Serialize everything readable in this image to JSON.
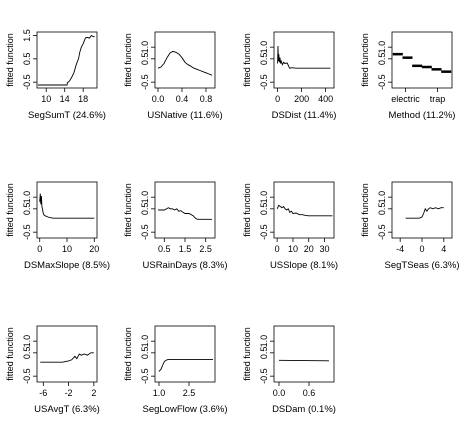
{
  "chart_data": [
    {
      "type": "line",
      "ylabel": "fitted function",
      "xlabel": "SegSumT  (24.6%)",
      "xlim": [
        8,
        21
      ],
      "ylim": [
        -0.75,
        1.65
      ],
      "xticks": [
        {
          "v": 10,
          "label": "10"
        },
        {
          "v": 14,
          "label": "14"
        },
        {
          "v": 18,
          "label": "18"
        }
      ],
      "yticks": [
        {
          "v": -0.5,
          "label": "-0.5"
        },
        {
          "v": 0.5,
          "label": "0.5"
        },
        {
          "v": 1.5,
          "label": "1.5"
        }
      ],
      "series": [
        {
          "x": [
            8.2,
            14.5,
            14.6,
            15,
            15.5,
            16,
            16.5,
            17,
            17.3,
            17.6,
            18,
            18.2,
            18.5,
            19,
            19.3,
            19.6,
            19.8,
            20.2,
            20.5
          ],
          "y": [
            -0.62,
            -0.62,
            -0.52,
            -0.46,
            -0.3,
            -0.1,
            0.25,
            0.5,
            0.8,
            1.0,
            1.15,
            1.25,
            1.4,
            1.42,
            1.38,
            1.45,
            1.5,
            1.45,
            1.45
          ]
        }
      ]
    },
    {
      "type": "line",
      "ylabel": "fitted function",
      "xlabel": "USNative  (11.6%)",
      "xlim": [
        -0.05,
        0.95
      ],
      "ylim": [
        -0.75,
        1.65
      ],
      "xticks": [
        {
          "v": 0,
          "label": "0.0"
        },
        {
          "v": 0.4,
          "label": "0.4"
        },
        {
          "v": 0.8,
          "label": "0.8"
        }
      ],
      "yticks": [
        {
          "v": -0.5,
          "label": "-0.5"
        },
        {
          "v": 0.5,
          "label": "0.5"
        },
        {
          "v": 1.0,
          "label": "1.0"
        }
      ],
      "series": [
        {
          "x": [
            0,
            0.05,
            0.1,
            0.15,
            0.2,
            0.25,
            0.3,
            0.35,
            0.4,
            0.45,
            0.5,
            0.55,
            0.6,
            0.65,
            0.7,
            0.75,
            0.8,
            0.85,
            0.9
          ],
          "y": [
            0.1,
            0.15,
            0.3,
            0.55,
            0.75,
            0.82,
            0.78,
            0.7,
            0.55,
            0.35,
            0.25,
            0.18,
            0.1,
            0.05,
            0,
            -0.05,
            -0.1,
            -0.15,
            -0.2
          ]
        }
      ]
    },
    {
      "type": "line",
      "ylabel": "fitted function",
      "xlabel": "DSDist  (11.4%)",
      "xlim": [
        -30,
        470
      ],
      "ylim": [
        -0.75,
        1.65
      ],
      "xticks": [
        {
          "v": 0,
          "label": "0"
        },
        {
          "v": 200,
          "label": "200"
        },
        {
          "v": 400,
          "label": "400"
        }
      ],
      "yticks": [
        {
          "v": -0.5,
          "label": "-0.5"
        },
        {
          "v": 0.5,
          "label": "0.5"
        },
        {
          "v": 1.0,
          "label": "1.0"
        }
      ],
      "series": [
        {
          "x": [
            0,
            3,
            6,
            10,
            15,
            20,
            25,
            30,
            40,
            50,
            60,
            80,
            100,
            120,
            150,
            200,
            250,
            300,
            350,
            400,
            440
          ],
          "y": [
            0.3,
            1.05,
            0.4,
            0.7,
            0.35,
            0.55,
            0.3,
            0.4,
            0.25,
            0.35,
            0.3,
            0.32,
            0.1,
            0.12,
            0.1,
            0.1,
            0.1,
            0.1,
            0.1,
            0.1,
            0.1
          ]
        }
      ]
    },
    {
      "type": "bar",
      "ylabel": "fitted function",
      "xlabel": "Method  (11.2%)",
      "xlim": [
        0.4,
        6.6
      ],
      "ylim": [
        -0.75,
        1.65
      ],
      "xticks": [
        {
          "v": 1.8,
          "label": "electric"
        },
        {
          "v": 5.1,
          "label": "trap"
        }
      ],
      "yticks": [
        {
          "v": -0.5,
          "label": "-0.5"
        },
        {
          "v": 0.5,
          "label": "0.5"
        },
        {
          "v": 1.0,
          "label": "1.0"
        }
      ],
      "categories": [
        "1",
        "2",
        "3",
        "4",
        "5",
        "6"
      ],
      "values": [
        0.7,
        0.55,
        0.2,
        0.15,
        0.05,
        -0.05
      ]
    },
    {
      "type": "line",
      "ylabel": "fitted function",
      "xlabel": "DSMaxSlope  (8.5%)",
      "xlim": [
        -1,
        21
      ],
      "ylim": [
        -0.75,
        1.65
      ],
      "xticks": [
        {
          "v": 0,
          "label": "0"
        },
        {
          "v": 10,
          "label": "10"
        },
        {
          "v": 20,
          "label": "20"
        }
      ],
      "yticks": [
        {
          "v": -0.5,
          "label": "-0.5"
        },
        {
          "v": 0.5,
          "label": "0.5"
        },
        {
          "v": 1.0,
          "label": "1.0"
        }
      ],
      "series": [
        {
          "x": [
            0,
            0.2,
            0.4,
            0.6,
            0.8,
            1,
            1.2,
            1.5,
            2,
            3,
            4,
            5,
            6,
            8,
            10,
            12,
            15,
            18,
            20
          ],
          "y": [
            0.8,
            1.15,
            0.7,
            1.05,
            0.6,
            0.5,
            0.35,
            0.25,
            0.2,
            0.15,
            0.12,
            0.1,
            0.1,
            0.1,
            0.1,
            0.1,
            0.1,
            0.1,
            0.1
          ]
        }
      ]
    },
    {
      "type": "line",
      "ylabel": "fitted function",
      "xlabel": "USRainDays  (8.3%)",
      "xlim": [
        0.05,
        2.95
      ],
      "ylim": [
        -0.75,
        1.65
      ],
      "xticks": [
        {
          "v": 0.5,
          "label": "0.5"
        },
        {
          "v": 1.5,
          "label": "1.5"
        },
        {
          "v": 2.5,
          "label": "2.5"
        }
      ],
      "yticks": [
        {
          "v": -0.5,
          "label": "-0.5"
        },
        {
          "v": 0.5,
          "label": "0.5"
        },
        {
          "v": 1.0,
          "label": "1.0"
        }
      ],
      "series": [
        {
          "x": [
            0.2,
            0.5,
            0.7,
            0.8,
            0.9,
            1.0,
            1.1,
            1.2,
            1.3,
            1.4,
            1.5,
            1.7,
            1.9,
            2.0,
            2.1,
            2.3,
            2.6,
            2.8
          ],
          "y": [
            0.45,
            0.45,
            0.55,
            0.5,
            0.5,
            0.45,
            0.5,
            0.4,
            0.42,
            0.35,
            0.3,
            0.3,
            0.2,
            0.1,
            0.05,
            0.05,
            0.05,
            0.05
          ]
        }
      ]
    },
    {
      "type": "line",
      "ylabel": "fitted function",
      "xlabel": "USSlope  (8.1%)",
      "xlim": [
        -2,
        36
      ],
      "ylim": [
        -0.75,
        1.65
      ],
      "xticks": [
        {
          "v": 0,
          "label": "0"
        },
        {
          "v": 10,
          "label": "10"
        },
        {
          "v": 20,
          "label": "20"
        },
        {
          "v": 30,
          "label": "30"
        }
      ],
      "yticks": [
        {
          "v": -0.5,
          "label": "-0.5"
        },
        {
          "v": 0.5,
          "label": "0.5"
        },
        {
          "v": 1.0,
          "label": "1.0"
        }
      ],
      "series": [
        {
          "x": [
            0,
            1,
            2,
            3,
            4,
            5,
            6,
            7,
            8,
            9,
            10,
            12,
            14,
            16,
            18,
            20,
            22,
            25,
            28,
            32,
            35
          ],
          "y": [
            0.5,
            0.65,
            0.6,
            0.55,
            0.6,
            0.5,
            0.45,
            0.5,
            0.35,
            0.4,
            0.3,
            0.32,
            0.25,
            0.25,
            0.22,
            0.2,
            0.2,
            0.2,
            0.2,
            0.2,
            0.2
          ]
        }
      ]
    },
    {
      "type": "line",
      "ylabel": "fitted function",
      "xlabel": "SegTSeas  (6.3%)",
      "xlim": [
        -5.5,
        5.5
      ],
      "ylim": [
        -0.75,
        1.65
      ],
      "xticks": [
        {
          "v": -4,
          "label": "-4"
        },
        {
          "v": 0,
          "label": "0"
        },
        {
          "v": 4,
          "label": "4"
        }
      ],
      "yticks": [
        {
          "v": -0.5,
          "label": "-0.5"
        },
        {
          "v": 0.5,
          "label": "0.5"
        },
        {
          "v": 1.0,
          "label": "1.0"
        }
      ],
      "series": [
        {
          "x": [
            -3,
            -2,
            -1,
            -0.5,
            0,
            0.3,
            0.6,
            0.9,
            1.2,
            1.5,
            2,
            2.5,
            3,
            3.5,
            4
          ],
          "y": [
            0.1,
            0.1,
            0.1,
            0.1,
            0.15,
            0.3,
            0.5,
            0.4,
            0.5,
            0.55,
            0.5,
            0.55,
            0.5,
            0.55,
            0.55
          ]
        }
      ]
    },
    {
      "type": "line",
      "ylabel": "fitted function",
      "xlabel": "USAvgT  (6.3%)",
      "xlim": [
        -7,
        2.5
      ],
      "ylim": [
        -0.75,
        1.65
      ],
      "xticks": [
        {
          "v": -6,
          "label": "-6"
        },
        {
          "v": -2,
          "label": "-2"
        },
        {
          "v": 2,
          "label": "2"
        }
      ],
      "yticks": [
        {
          "v": -0.5,
          "label": "-0.5"
        },
        {
          "v": 0.5,
          "label": "0.5"
        },
        {
          "v": 1.0,
          "label": "1.0"
        }
      ],
      "series": [
        {
          "x": [
            -6.5,
            -5,
            -4,
            -3,
            -2,
            -1.5,
            -1,
            -0.7,
            -0.3,
            0,
            0.5,
            1,
            1.5,
            2
          ],
          "y": [
            0.1,
            0.1,
            0.1,
            0.1,
            0.15,
            0.2,
            0.35,
            0.25,
            0.45,
            0.4,
            0.45,
            0.4,
            0.5,
            0.5
          ]
        }
      ]
    },
    {
      "type": "line",
      "ylabel": "fitted function",
      "xlabel": "SegLowFlow  (3.6%)",
      "xlim": [
        0.8,
        3.8
      ],
      "ylim": [
        -0.75,
        1.65
      ],
      "xticks": [
        {
          "v": 1.0,
          "label": "1.0"
        },
        {
          "v": 2.5,
          "label": "2.5"
        }
      ],
      "yticks": [
        {
          "v": -0.5,
          "label": "-0.5"
        },
        {
          "v": 0.5,
          "label": "0.5"
        },
        {
          "v": 1.0,
          "label": "1.0"
        }
      ],
      "series": [
        {
          "x": [
            1.0,
            1.05,
            1.1,
            1.15,
            1.2,
            1.25,
            1.3,
            1.4,
            1.5,
            1.7,
            2.0,
            2.5,
            3.0,
            3.5,
            3.7
          ],
          "y": [
            -0.3,
            -0.25,
            -0.2,
            -0.1,
            0,
            0.1,
            0.15,
            0.2,
            0.22,
            0.22,
            0.22,
            0.22,
            0.22,
            0.22,
            0.22
          ]
        }
      ]
    },
    {
      "type": "line",
      "ylabel": "fitted function",
      "xlabel": "DSDam  (0.1%)",
      "xlim": [
        -0.1,
        1.1
      ],
      "ylim": [
        -0.75,
        1.65
      ],
      "xticks": [
        {
          "v": 0,
          "label": "0.0"
        },
        {
          "v": 0.6,
          "label": "0.6"
        }
      ],
      "yticks": [
        {
          "v": -0.5,
          "label": "-0.5"
        },
        {
          "v": 0.5,
          "label": "0.5"
        },
        {
          "v": 1.0,
          "label": "1.0"
        }
      ],
      "series": [
        {
          "x": [
            0,
            1
          ],
          "y": [
            0.18,
            0.16
          ]
        }
      ]
    }
  ]
}
